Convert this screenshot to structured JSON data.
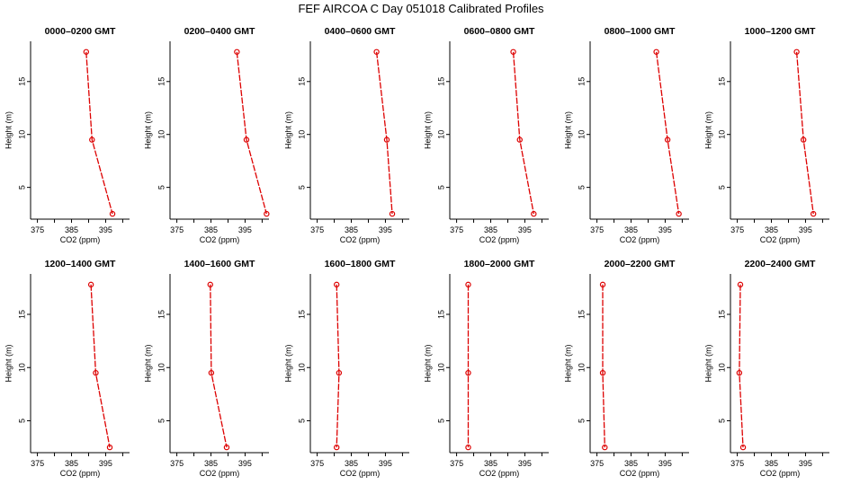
{
  "title": "FEF AIRCOA C  Day 051018  Calibrated Profiles",
  "colors": {
    "series": "#dd0000",
    "axis": "#000000",
    "background": "#ffffff"
  },
  "chart_data": [
    {
      "type": "line",
      "title": "0000–0200 GMT",
      "xlabel": "CO2 (ppm)",
      "ylabel": "Height (m)",
      "xlim": [
        373,
        402
      ],
      "ylim": [
        2,
        18.8
      ],
      "xticks": [
        375,
        385,
        395
      ],
      "yticks": [
        5,
        10,
        15
      ],
      "points": [
        {
          "x": 389.3,
          "y": 17.8
        },
        {
          "x": 391.0,
          "y": 9.5
        },
        {
          "x": 397.0,
          "y": 2.5
        }
      ]
    },
    {
      "type": "line",
      "title": "0200–0400 GMT",
      "xlabel": "CO2 (ppm)",
      "ylabel": "Height (m)",
      "xlim": [
        373,
        402
      ],
      "ylim": [
        2,
        18.8
      ],
      "xticks": [
        375,
        385,
        395
      ],
      "yticks": [
        5,
        10,
        15
      ],
      "points": [
        {
          "x": 392.6,
          "y": 17.8
        },
        {
          "x": 395.4,
          "y": 9.5
        },
        {
          "x": 401.3,
          "y": 2.5
        }
      ]
    },
    {
      "type": "line",
      "title": "0400–0600 GMT",
      "xlabel": "CO2 (ppm)",
      "ylabel": "Height (m)",
      "xlim": [
        373,
        402
      ],
      "ylim": [
        2,
        18.8
      ],
      "xticks": [
        375,
        385,
        395
      ],
      "yticks": [
        5,
        10,
        15
      ],
      "points": [
        {
          "x": 392.4,
          "y": 17.8
        },
        {
          "x": 395.4,
          "y": 9.5
        },
        {
          "x": 397.0,
          "y": 2.5
        }
      ]
    },
    {
      "type": "line",
      "title": "0600–0800 GMT",
      "xlabel": "CO2 (ppm)",
      "ylabel": "Height (m)",
      "xlim": [
        373,
        402
      ],
      "ylim": [
        2,
        18.8
      ],
      "xticks": [
        375,
        385,
        395
      ],
      "yticks": [
        5,
        10,
        15
      ],
      "points": [
        {
          "x": 391.6,
          "y": 17.8
        },
        {
          "x": 393.5,
          "y": 9.5
        },
        {
          "x": 397.6,
          "y": 2.5
        }
      ]
    },
    {
      "type": "line",
      "title": "0800–1000 GMT",
      "xlabel": "CO2 (ppm)",
      "ylabel": "Height (m)",
      "xlim": [
        373,
        402
      ],
      "ylim": [
        2,
        18.8
      ],
      "xticks": [
        375,
        385,
        395
      ],
      "yticks": [
        5,
        10,
        15
      ],
      "points": [
        {
          "x": 392.4,
          "y": 17.8
        },
        {
          "x": 395.7,
          "y": 9.5
        },
        {
          "x": 399.0,
          "y": 2.5
        }
      ]
    },
    {
      "type": "line",
      "title": "1000–1200 GMT",
      "xlabel": "CO2 (ppm)",
      "ylabel": "Height (m)",
      "xlim": [
        373,
        402
      ],
      "ylim": [
        2,
        18.8
      ],
      "xticks": [
        375,
        385,
        395
      ],
      "yticks": [
        5,
        10,
        15
      ],
      "points": [
        {
          "x": 392.4,
          "y": 17.8
        },
        {
          "x": 394.4,
          "y": 9.5
        },
        {
          "x": 397.3,
          "y": 2.5
        }
      ]
    },
    {
      "type": "line",
      "title": "1200–1400 GMT",
      "xlabel": "CO2 (ppm)",
      "ylabel": "Height (m)",
      "xlim": [
        373,
        402
      ],
      "ylim": [
        2,
        18.8
      ],
      "xticks": [
        375,
        385,
        395
      ],
      "yticks": [
        5,
        10,
        15
      ],
      "points": [
        {
          "x": 390.7,
          "y": 17.8
        },
        {
          "x": 392.1,
          "y": 9.5
        },
        {
          "x": 396.2,
          "y": 2.5
        }
      ]
    },
    {
      "type": "line",
      "title": "1400–1600 GMT",
      "xlabel": "CO2 (ppm)",
      "ylabel": "Height (m)",
      "xlim": [
        373,
        402
      ],
      "ylim": [
        2,
        18.8
      ],
      "xticks": [
        375,
        385,
        395
      ],
      "yticks": [
        5,
        10,
        15
      ],
      "points": [
        {
          "x": 384.8,
          "y": 17.8
        },
        {
          "x": 385.1,
          "y": 9.5
        },
        {
          "x": 389.6,
          "y": 2.5
        }
      ]
    },
    {
      "type": "line",
      "title": "1600–1800 GMT",
      "xlabel": "CO2 (ppm)",
      "ylabel": "Height (m)",
      "xlim": [
        373,
        402
      ],
      "ylim": [
        2,
        18.8
      ],
      "xticks": [
        375,
        385,
        395
      ],
      "yticks": [
        5,
        10,
        15
      ],
      "points": [
        {
          "x": 380.7,
          "y": 17.8
        },
        {
          "x": 381.4,
          "y": 9.5
        },
        {
          "x": 380.7,
          "y": 2.5
        }
      ]
    },
    {
      "type": "line",
      "title": "1800–2000 GMT",
      "xlabel": "CO2 (ppm)",
      "ylabel": "Height (m)",
      "xlim": [
        373,
        402
      ],
      "ylim": [
        2,
        18.8
      ],
      "xticks": [
        375,
        385,
        395
      ],
      "yticks": [
        5,
        10,
        15
      ],
      "points": [
        {
          "x": 378.4,
          "y": 17.8
        },
        {
          "x": 378.4,
          "y": 9.5
        },
        {
          "x": 378.4,
          "y": 2.5
        }
      ]
    },
    {
      "type": "line",
      "title": "2000–2200 GMT",
      "xlabel": "CO2 (ppm)",
      "ylabel": "Height (m)",
      "xlim": [
        373,
        402
      ],
      "ylim": [
        2,
        18.8
      ],
      "xticks": [
        375,
        385,
        395
      ],
      "yticks": [
        5,
        10,
        15
      ],
      "points": [
        {
          "x": 376.7,
          "y": 17.8
        },
        {
          "x": 376.7,
          "y": 9.5
        },
        {
          "x": 377.3,
          "y": 2.5
        }
      ]
    },
    {
      "type": "line",
      "title": "2200–2400 GMT",
      "xlabel": "CO2 (ppm)",
      "ylabel": "Height (m)",
      "xlim": [
        373,
        402
      ],
      "ylim": [
        2,
        18.8
      ],
      "xticks": [
        375,
        385,
        395
      ],
      "yticks": [
        5,
        10,
        15
      ],
      "points": [
        {
          "x": 375.9,
          "y": 17.8
        },
        {
          "x": 375.6,
          "y": 9.5
        },
        {
          "x": 376.7,
          "y": 2.5
        }
      ]
    }
  ]
}
